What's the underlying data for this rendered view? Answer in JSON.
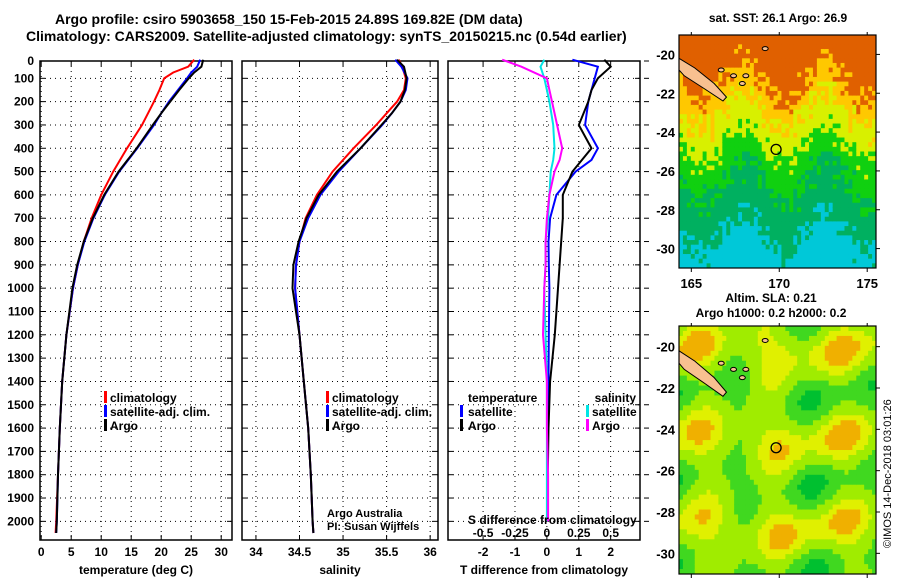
{
  "title_line1": "Argo profile: csiro 5903658_150 15-Feb-2015 24.89S 169.82E (DM data)",
  "title_line2": "Climatology: CARS2009. Satellite-adjusted climatology: synTS_20150215.nc (0.54d earlier)",
  "copyright": "©IMOS 14-Dec-2018 03:01:26",
  "colors": {
    "climatology": "#ff0000",
    "satellite": "#0000ff",
    "argo": "#000000",
    "s_sat": "#00e5e5",
    "s_argo": "#ff00ff"
  },
  "chart_data": [
    {
      "type": "line",
      "id": "temperature",
      "xlabel": "temperature (deg C)",
      "xlim": [
        -0.2,
        31.8
      ],
      "ylim": [
        0,
        2080
      ],
      "yreversed": true,
      "xticks": [
        0,
        5,
        10,
        15,
        20,
        25,
        30
      ],
      "yticks": [
        0,
        100,
        200,
        300,
        400,
        500,
        600,
        700,
        800,
        900,
        1000,
        1100,
        1200,
        1300,
        1400,
        1500,
        1600,
        1700,
        1800,
        1900,
        2000
      ],
      "legend": [
        "climatology",
        "satellite-adj. clim.",
        "Argo"
      ],
      "depth": [
        20,
        50,
        75,
        100,
        150,
        200,
        250,
        300,
        400,
        500,
        600,
        700,
        800,
        900,
        1000,
        1200,
        1400,
        1600,
        1800,
        2000,
        2050
      ],
      "series": [
        {
          "name": "climatology",
          "values": [
            25.5,
            24.5,
            22,
            20.5,
            19.7,
            18.8,
            17.8,
            16.8,
            14.3,
            12,
            10,
            8.4,
            7.1,
            6.1,
            5.3,
            4.2,
            3.5,
            3.1,
            2.8,
            2.5,
            2.4
          ]
        },
        {
          "name": "satellite-adj. clim.",
          "values": [
            26.5,
            26,
            25,
            24.3,
            22.8,
            21.3,
            20,
            18.8,
            16,
            13,
            10.6,
            8.7,
            7.2,
            6.1,
            5.3,
            4.2,
            3.5,
            3.1,
            2.8,
            2.6,
            2.5
          ]
        },
        {
          "name": "Argo",
          "values": [
            27,
            26.7,
            25.5,
            24.6,
            23,
            21.5,
            20,
            18.6,
            15.9,
            12.9,
            10.5,
            8.6,
            7.1,
            6,
            5.2,
            4.2,
            3.5,
            3.1,
            2.8,
            2.6,
            2.5
          ]
        }
      ]
    },
    {
      "type": "line",
      "id": "salinity",
      "xlabel": "salinity",
      "xlim": [
        33.84,
        36.09
      ],
      "ylim": [
        0,
        2080
      ],
      "yreversed": true,
      "xticks": [
        34,
        34.5,
        35,
        35.5,
        36
      ],
      "legend": [
        "climatology",
        "satellite-adj. clim.",
        "Argo"
      ],
      "annotation": [
        "Argo Australia",
        "PI: Susan Wijffels"
      ],
      "depth": [
        20,
        50,
        100,
        150,
        200,
        250,
        300,
        400,
        500,
        600,
        700,
        800,
        900,
        1000,
        1200,
        1400,
        1600,
        1800,
        2000,
        2050
      ],
      "series": [
        {
          "name": "climatology",
          "values": [
            35.64,
            35.68,
            35.72,
            35.7,
            35.62,
            35.5,
            35.38,
            35.12,
            34.88,
            34.7,
            34.57,
            34.5,
            34.46,
            34.45,
            34.5,
            34.55,
            34.6,
            34.63,
            34.65,
            34.66
          ]
        },
        {
          "name": "satellite-adj. clim.",
          "values": [
            35.6,
            35.67,
            35.74,
            35.72,
            35.66,
            35.56,
            35.45,
            35.2,
            34.95,
            34.74,
            34.6,
            34.5,
            34.46,
            34.45,
            34.5,
            34.55,
            34.6,
            34.63,
            34.65,
            34.66
          ]
        },
        {
          "name": "Argo",
          "values": [
            35.62,
            35.7,
            35.73,
            35.71,
            35.66,
            35.56,
            35.44,
            35.2,
            34.93,
            34.72,
            34.58,
            34.49,
            34.43,
            34.42,
            34.5,
            34.55,
            34.6,
            34.63,
            34.65,
            34.66
          ]
        }
      ]
    },
    {
      "type": "line",
      "id": "difference",
      "xlabel": "T difference from climatology",
      "xlabel2": "S difference from climatology",
      "xlim": [
        -3.1,
        2.92
      ],
      "ylim": [
        0,
        2080
      ],
      "yreversed": true,
      "xticks": [
        -2,
        -1,
        0,
        1,
        2
      ],
      "xticks2": [
        -0.5,
        -0.25,
        0,
        0.25,
        0.5
      ],
      "legend_t": [
        "temperature",
        "satellite",
        "Argo"
      ],
      "legend_s": [
        "salinity",
        "satellite",
        "Argo"
      ],
      "depth": [
        20,
        50,
        100,
        150,
        200,
        300,
        400,
        450,
        500,
        600,
        700,
        800,
        900,
        1000,
        1200,
        1400,
        1600,
        1800,
        2000
      ],
      "series": [
        {
          "name": "T satellite",
          "values": [
            0.8,
            1.6,
            1.5,
            1.4,
            1.3,
            1.2,
            1.6,
            1.4,
            0.9,
            0.3,
            0.1,
            0.05,
            0.06,
            0.08,
            0.06,
            0.05,
            0.04,
            0.03,
            0.03
          ]
        },
        {
          "name": "T Argo",
          "values": [
            1.8,
            2,
            1.6,
            1.4,
            1.3,
            1.0,
            1.4,
            1.1,
            0.8,
            0.5,
            0.5,
            0.45,
            0.4,
            0.35,
            0.25,
            0.1,
            0.05,
            0.03,
            0.02
          ]
        },
        {
          "name": "S satellite",
          "values": [
            -0.02,
            -0.05,
            -0.02,
            0.0,
            0.02,
            0.05,
            0.06,
            0.05,
            0.03,
            0.02,
            0.01,
            -0.01,
            -0.01,
            -0.02,
            -0.01,
            0,
            0,
            0,
            0
          ]
        },
        {
          "name": "S Argo",
          "values": [
            -0.35,
            -0.2,
            0.0,
            0.02,
            0.04,
            0.08,
            0.12,
            0.1,
            0.06,
            0.02,
            0.0,
            -0.01,
            -0.01,
            -0.02,
            -0.03,
            0,
            0,
            0.01,
            0.01
          ]
        }
      ]
    },
    {
      "type": "heatmap",
      "id": "sst-map",
      "title": "sat. SST: 26.1 Argo: 26.9",
      "xlim": [
        164.3,
        175.5
      ],
      "ylim": [
        -31,
        -19
      ],
      "xticks": [
        165,
        170,
        175
      ],
      "yticks": [
        -20,
        -22,
        -24,
        -26,
        -28,
        -30
      ],
      "marker": [
        169.82,
        -24.89
      ]
    },
    {
      "type": "heatmap",
      "id": "sla-map",
      "title": "Altim. SLA: 0.21",
      "subtitle": "Argo h1000: 0.2 h2000: 0.2",
      "xlim": [
        164.3,
        175.5
      ],
      "ylim": [
        -31,
        -19
      ],
      "xticks": [
        165,
        170,
        175
      ],
      "yticks": [
        -20,
        -22,
        -24,
        -26,
        -28,
        -30
      ],
      "marker": [
        169.82,
        -24.89
      ]
    }
  ]
}
